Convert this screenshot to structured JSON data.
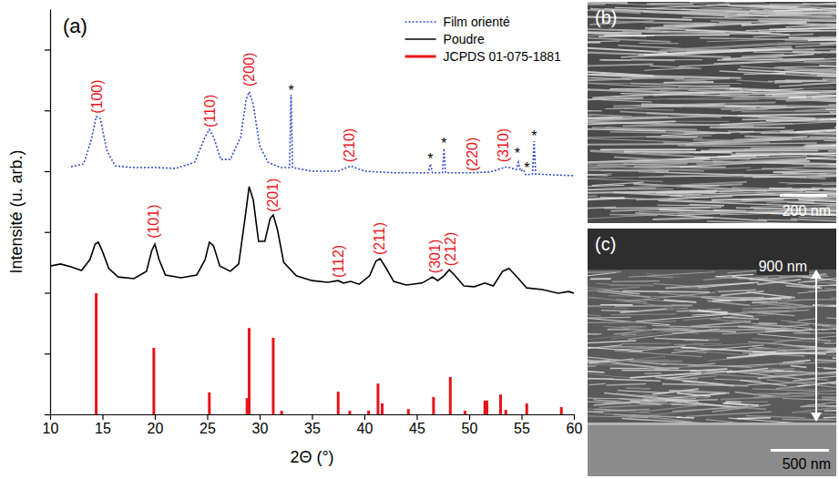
{
  "chart_data": {
    "type": "line",
    "panel_label": "(a)",
    "x_label": "2Θ (°)",
    "y_label": "Intensité (u. arb.)",
    "xlim": [
      10,
      60
    ],
    "xticks": [
      10,
      15,
      20,
      25,
      30,
      35,
      40,
      45,
      50,
      55,
      60
    ],
    "ylim": [
      0,
      100
    ],
    "yticks": [
      0,
      15,
      30,
      45,
      60,
      75,
      90
    ],
    "tick_labels": "x",
    "legend": "upper right",
    "series": [
      {
        "name": "Film orienté",
        "type": "line",
        "color": "#2f4bd1",
        "line_style": "dotted",
        "x": [
          12,
          13.2,
          13.9,
          14.4,
          14.8,
          15.4,
          16.2,
          18,
          20,
          22,
          23.8,
          24.8,
          25.2,
          25.6,
          26.3,
          27.2,
          28.2,
          28.7,
          29.0,
          29.4,
          30.0,
          30.8,
          32,
          32.85,
          33.0,
          33.15,
          35,
          37.5,
          38.7,
          40,
          43,
          46.1,
          46.3,
          46.5,
          47.45,
          47.6,
          47.75,
          50,
          52,
          53.6,
          54.5,
          54.7,
          54.9,
          55.2,
          55.4,
          56.05,
          56.2,
          56.35,
          58,
          60
        ],
        "values": [
          61.1,
          61.8,
          67.4,
          73.5,
          73.0,
          65.2,
          61.3,
          60.9,
          60.9,
          60.7,
          62.2,
          68.5,
          70.3,
          68.5,
          62.9,
          62.9,
          68.5,
          77.5,
          79.6,
          76.4,
          66.3,
          62.2,
          60.9,
          60.9,
          78.9,
          60.9,
          60.0,
          60.0,
          61.3,
          60.0,
          59.6,
          59.6,
          61.8,
          59.6,
          59.6,
          65.6,
          59.6,
          59.6,
          59.8,
          61.1,
          60.4,
          62.2,
          60.0,
          60.4,
          59.1,
          59.3,
          67.4,
          59.3,
          59.1,
          58.9
        ]
      },
      {
        "name": "Poudre",
        "type": "line",
        "color": "#000000",
        "line_style": "solid",
        "x": [
          10,
          11,
          12,
          13,
          13.8,
          14.3,
          14.6,
          15.0,
          15.6,
          16.5,
          18,
          19.2,
          19.7,
          20.0,
          20.4,
          21,
          22.5,
          24,
          24.8,
          25.2,
          25.6,
          26.2,
          27.2,
          28.0,
          28.6,
          29.0,
          29.4,
          29.9,
          30.5,
          31.0,
          31.3,
          31.7,
          32.3,
          33.5,
          35,
          36.5,
          37.5,
          38.0,
          38.7,
          39.5,
          40.5,
          41.1,
          41.5,
          42.0,
          42.8,
          44,
          45.5,
          46.5,
          47.0,
          47.6,
          48.1,
          48.6,
          49.5,
          50.5,
          51.5,
          52.3,
          53.2,
          53.8,
          54.4,
          55.5,
          57,
          58.5,
          59.5,
          60
        ],
        "values": [
          36.6,
          37.1,
          36.4,
          35.5,
          38.2,
          42.0,
          42.5,
          40.2,
          36.0,
          33.9,
          33.5,
          35.3,
          40.4,
          42.0,
          38.2,
          34.4,
          33.7,
          34.4,
          38.2,
          42.5,
          41.6,
          36.6,
          35.3,
          37.1,
          48.3,
          56.2,
          52.8,
          42.7,
          42.7,
          48.3,
          49.2,
          45.6,
          37.5,
          34.2,
          33.0,
          32.6,
          33.0,
          32.4,
          32.8,
          32.1,
          34.2,
          37.8,
          38.4,
          36.4,
          32.8,
          31.9,
          32.4,
          33.9,
          33.0,
          34.2,
          35.7,
          34.4,
          31.7,
          31.5,
          32.4,
          31.7,
          35.3,
          36.0,
          34.4,
          31.2,
          30.8,
          29.9,
          30.3,
          29.9
        ]
      },
      {
        "name": "JCPDS 01-075-1881",
        "type": "bar",
        "color": "#e8141b",
        "x": [
          14.4,
          19.9,
          25.2,
          28.8,
          29.0,
          31.3,
          32.1,
          37.5,
          38.6,
          40.4,
          41.3,
          41.7,
          44.2,
          46.6,
          48.2,
          49.6,
          51.5,
          51.7,
          53.0,
          53.5,
          55.5,
          58.8
        ],
        "values": [
          29.9,
          16.4,
          5.4,
          4.0,
          21.3,
          18.9,
          0.9,
          5.6,
          0.9,
          0.9,
          7.6,
          2.7,
          1.3,
          4.3,
          9.2,
          0.9,
          3.4,
          3.4,
          4.9,
          1.1,
          2.7,
          1.8
        ]
      }
    ],
    "annotations": [
      {
        "text": "(100)",
        "x": 14.5,
        "y": 74.2,
        "color": "#e8141b"
      },
      {
        "text": "(110)",
        "x": 25.3,
        "y": 70.8,
        "color": "#e8141b"
      },
      {
        "text": "(200)",
        "x": 29.0,
        "y": 80.9,
        "color": "#e8141b"
      },
      {
        "text": "(210)",
        "x": 38.6,
        "y": 62.2,
        "color": "#e8141b"
      },
      {
        "text": "(220)",
        "x": 50.3,
        "y": 60.0,
        "color": "#e8141b"
      },
      {
        "text": "(310)",
        "x": 53.3,
        "y": 62.2,
        "color": "#e8141b"
      },
      {
        "text": "(101)",
        "x": 19.9,
        "y": 43.4,
        "color": "#e8141b"
      },
      {
        "text": "(201)",
        "x": 31.3,
        "y": 49.9,
        "color": "#e8141b"
      },
      {
        "text": "(112)",
        "x": 37.5,
        "y": 33.7,
        "color": "#e8141b"
      },
      {
        "text": "(211)",
        "x": 41.4,
        "y": 39.3,
        "color": "#e8141b"
      },
      {
        "text": "(301)",
        "x": 46.7,
        "y": 34.8,
        "color": "#e8141b"
      },
      {
        "text": "(212)",
        "x": 48.2,
        "y": 36.6,
        "color": "#e8141b"
      },
      {
        "text": "*",
        "x": 33.0,
        "y": 80.4,
        "color": "#000000"
      },
      {
        "text": "*",
        "x": 46.3,
        "y": 63.6,
        "color": "#000000"
      },
      {
        "text": "*",
        "x": 47.6,
        "y": 67.4,
        "color": "#000000"
      },
      {
        "text": "*",
        "x": 54.6,
        "y": 64.9,
        "color": "#000000"
      },
      {
        "text": "*",
        "x": 55.5,
        "y": 61.3,
        "color": "#000000"
      },
      {
        "text": "*",
        "x": 56.2,
        "y": 69.2,
        "color": "#000000"
      }
    ]
  },
  "images": [
    {
      "label": "(b)",
      "scale_bar": "200 nm"
    },
    {
      "label": "(c)",
      "scale_bar": "500 nm",
      "thickness": "900 nm"
    }
  ]
}
